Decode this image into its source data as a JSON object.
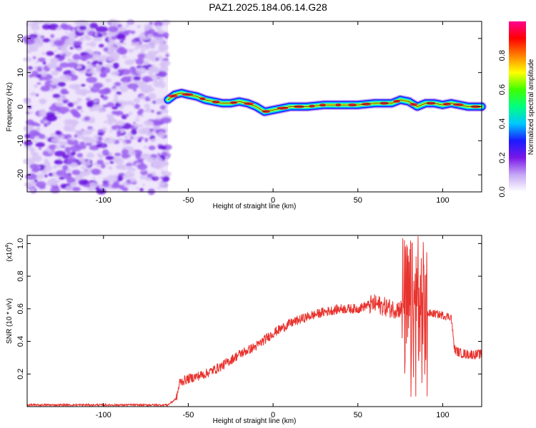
{
  "title": "PAZ1.2025.184.06.14.G28",
  "chart_data": [
    {
      "type": "heatmap",
      "xlabel": "Height of straight line (km)",
      "ylabel": "Frequency (Hz)",
      "xlim": [
        -145,
        123
      ],
      "ylim": [
        -25,
        25
      ],
      "xticks": [
        -100,
        -50,
        0,
        50,
        100
      ],
      "xtick_labels": [
        "-100",
        "-50",
        "0",
        "50",
        "100"
      ],
      "yticks": [
        -20,
        -10,
        0,
        10,
        20
      ],
      "ytick_labels": [
        "-20",
        "-10",
        "0",
        "10",
        "20"
      ],
      "colorbar": {
        "label": "Normalized spectral amplitude",
        "range": [
          0,
          1
        ],
        "ticks": [
          0.0,
          0.2,
          0.4,
          0.6,
          0.8
        ],
        "tick_labels": [
          "0.0",
          "0.2",
          "0.4",
          "0.6",
          "0.8"
        ],
        "colors": [
          "#ffffff",
          "#c7a8f5",
          "#7a18e8",
          "#1a1aff",
          "#00c8ff",
          "#00ff80",
          "#40ff00",
          "#ffff00",
          "#ff8000",
          "#ff0000",
          "#ff0090"
        ]
      },
      "noise_region_x": [
        -145,
        -62
      ],
      "ridge": {
        "x": [
          -62,
          -58,
          -54,
          -50,
          -45,
          -40,
          -35,
          -30,
          -25,
          -20,
          -15,
          -10,
          -5,
          0,
          5,
          10,
          15,
          20,
          30,
          40,
          50,
          60,
          70,
          75,
          80,
          85,
          90,
          95,
          100,
          105,
          110,
          115,
          123
        ],
        "y": [
          2,
          3.5,
          4,
          3.5,
          3,
          2,
          1.5,
          1,
          1,
          1.5,
          1,
          0,
          -1.5,
          -1,
          -0.5,
          0,
          0,
          0,
          0.5,
          0.5,
          0.5,
          1,
          1,
          2,
          1.5,
          0,
          1,
          1,
          0.5,
          1,
          0.5,
          0,
          0
        ]
      }
    },
    {
      "type": "line",
      "xlabel": "Height of straight line (km)",
      "ylabel": "SNR (10 * v/v)",
      "scale_label": "(x10",
      "scale_exp": "4",
      "xlim": [
        -145,
        123
      ],
      "ylim": [
        0,
        1.05
      ],
      "xticks": [
        -100,
        -50,
        0,
        50,
        100
      ],
      "xtick_labels": [
        "-100",
        "-50",
        "0",
        "50",
        "100"
      ],
      "yticks": [
        0.2,
        0.4,
        0.6,
        0.8,
        1.0
      ],
      "ytick_labels": [
        "0.2",
        "0.4",
        "0.6",
        "0.8",
        "1.0"
      ],
      "color": "#e8322d",
      "envelope": {
        "x": [
          -145,
          -62,
          -57,
          -55,
          -50,
          -40,
          -30,
          -20,
          -10,
          0,
          10,
          20,
          30,
          40,
          50,
          55,
          60,
          70,
          75,
          80,
          85,
          90,
          95,
          100,
          105,
          107,
          110,
          115,
          123
        ],
        "y": [
          0.01,
          0.01,
          0.05,
          0.15,
          0.17,
          0.2,
          0.25,
          0.32,
          0.37,
          0.45,
          0.51,
          0.55,
          0.58,
          0.6,
          0.6,
          0.62,
          0.63,
          0.6,
          0.6,
          0.58,
          0.58,
          0.57,
          0.57,
          0.56,
          0.55,
          0.35,
          0.33,
          0.32,
          0.32
        ]
      }
    }
  ]
}
